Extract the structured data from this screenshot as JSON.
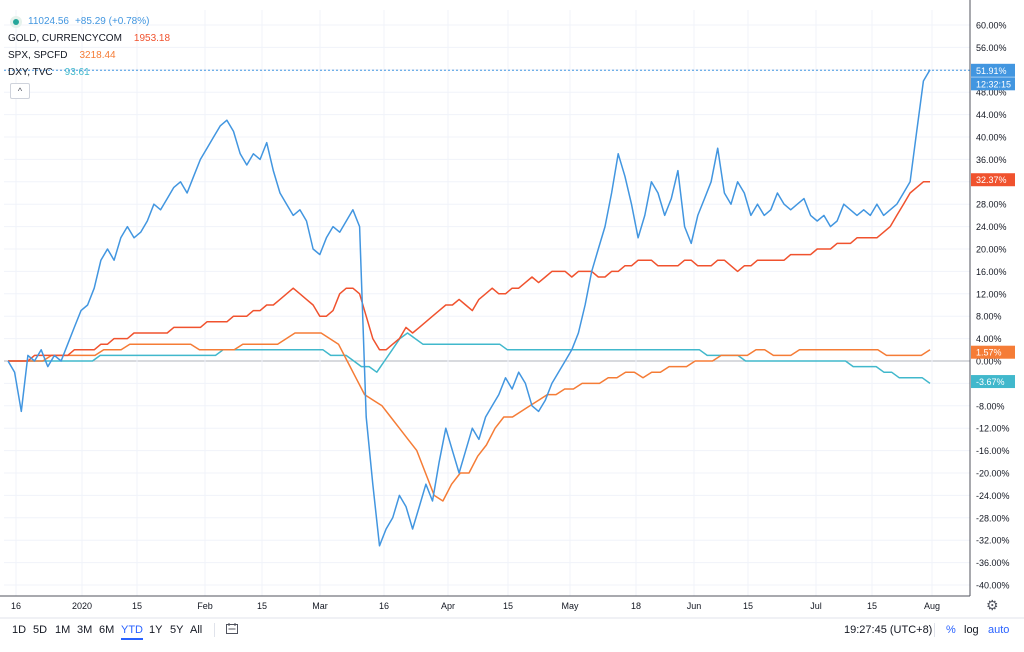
{
  "legend": {
    "main_value": "11024.56",
    "main_change": "+85.29 (+0.78%)",
    "series": [
      {
        "symbol": "GOLD, CURRENCYCOM",
        "value": "1953.18",
        "color": "#f0522e"
      },
      {
        "symbol": "SPX, SPCFD",
        "value": "3218.44",
        "color": "#f57c36"
      },
      {
        "symbol": "DXY, TVC",
        "value": "93.61",
        "color": "#41b8cc"
      }
    ],
    "collapse_glyph": "^"
  },
  "toolbar": {
    "ranges": [
      "1D",
      "5D",
      "1M",
      "3M",
      "6M",
      "YTD",
      "1Y",
      "5Y",
      "All"
    ],
    "active_range": "YTD",
    "time": "19:27:45 (UTC+8)",
    "percent": "%",
    "log": "log",
    "auto": "auto"
  },
  "chart_data": {
    "type": "line",
    "y_unit": "percent",
    "ylim": [
      -41,
      62
    ],
    "y_ticks": [
      60,
      56,
      52,
      48,
      44,
      40,
      36,
      32,
      28,
      24,
      20,
      16,
      12,
      8,
      4,
      0,
      -4,
      -8,
      -12,
      -16,
      -20,
      -24,
      -28,
      -32,
      -36,
      -40
    ],
    "x_ticks": [
      "16",
      "2020",
      "15",
      "Feb",
      "15",
      "Mar",
      "16",
      "Apr",
      "15",
      "May",
      "18",
      "Jun",
      "15",
      "Jul",
      "15",
      "Aug"
    ],
    "grid": true,
    "crosshair": {
      "value": 51.91,
      "time_label": "12:32:15"
    },
    "series": [
      {
        "name": "Main",
        "color": "#4296e0",
        "last_label": "51.91%",
        "values": [
          0,
          -2,
          -9,
          1,
          0,
          2,
          -1,
          1,
          0,
          3,
          6,
          9,
          10,
          13,
          18,
          20,
          18,
          22,
          24,
          22,
          23,
          25,
          28,
          27,
          29,
          31,
          32,
          30,
          33,
          36,
          38,
          40,
          42,
          43,
          41,
          37,
          35,
          37,
          36,
          39,
          34,
          30,
          28,
          26,
          27,
          25,
          20,
          19,
          22,
          24,
          23,
          25,
          27,
          24,
          -10,
          -22,
          -33,
          -30,
          -28,
          -24,
          -26,
          -30,
          -26,
          -22,
          -25,
          -18,
          -12,
          -16,
          -20,
          -16,
          -12,
          -14,
          -10,
          -8,
          -6,
          -3,
          -5,
          -2,
          -4,
          -8,
          -9,
          -7,
          -4,
          -2,
          0,
          2,
          5,
          10,
          16,
          20,
          24,
          30,
          37,
          33,
          28,
          22,
          26,
          32,
          30,
          26,
          29,
          34,
          24,
          21,
          26,
          29,
          32,
          38,
          30,
          28,
          32,
          30,
          26,
          28,
          26,
          27,
          30,
          28,
          27,
          28,
          29,
          26,
          25,
          26,
          24,
          25,
          28,
          27,
          26,
          27,
          26,
          28,
          26,
          27,
          28,
          30,
          32,
          41,
          50,
          52
        ]
      },
      {
        "name": "GOLD, CURRENCYCOM",
        "color": "#f0522e",
        "last_label": "32.37%",
        "values": [
          0,
          0,
          0,
          0,
          1,
          1,
          1,
          1,
          1,
          1,
          2,
          2,
          2,
          2,
          3,
          3,
          4,
          4,
          4,
          5,
          5,
          5,
          5,
          5,
          5,
          6,
          6,
          6,
          6,
          6,
          7,
          7,
          7,
          7,
          8,
          8,
          8,
          9,
          9,
          10,
          10,
          11,
          12,
          13,
          12,
          11,
          10,
          8,
          8,
          9,
          12,
          13,
          13,
          12,
          8,
          4,
          2,
          2,
          3,
          4,
          6,
          5,
          6,
          7,
          8,
          9,
          10,
          10,
          11,
          10,
          9,
          11,
          12,
          13,
          12,
          12,
          13,
          13,
          14,
          15,
          14,
          15,
          16,
          16,
          16,
          15,
          16,
          16,
          16,
          15,
          15,
          16,
          16,
          17,
          17,
          18,
          18,
          18,
          17,
          17,
          17,
          17,
          18,
          18,
          17,
          17,
          17,
          18,
          18,
          17,
          16,
          17,
          17,
          18,
          18,
          18,
          18,
          18,
          19,
          19,
          19,
          19,
          20,
          20,
          20,
          21,
          21,
          21,
          22,
          22,
          22,
          22,
          23,
          24,
          26,
          28,
          30,
          31,
          32,
          32
        ]
      },
      {
        "name": "SPX, SPCFD",
        "color": "#f57c36",
        "last_label": "1.57%",
        "values": [
          0,
          0,
          0,
          0,
          0,
          1,
          1,
          1,
          1,
          1,
          1,
          2,
          2,
          2,
          3,
          3,
          3,
          3,
          3,
          3,
          3,
          3,
          2,
          2,
          2,
          2,
          2,
          3,
          3,
          3,
          3,
          3,
          4,
          5,
          5,
          5,
          5,
          4,
          3,
          0,
          -3,
          -6,
          -7,
          -8,
          -10,
          -12,
          -14,
          -16,
          -20,
          -24,
          -25,
          -22,
          -20,
          -20,
          -17,
          -15,
          -12,
          -10,
          -10,
          -9,
          -8,
          -7,
          -6,
          -6,
          -5,
          -5,
          -4,
          -4,
          -4,
          -3,
          -3,
          -2,
          -2,
          -3,
          -2,
          -2,
          -1,
          -1,
          -1,
          0,
          0,
          0,
          1,
          1,
          1,
          1,
          2,
          2,
          1,
          1,
          1,
          2,
          2,
          2,
          2,
          2,
          2,
          2,
          2,
          2,
          2,
          1,
          1,
          1,
          1,
          1,
          2
        ]
      },
      {
        "name": "DXY, TVC",
        "color": "#41b8cc",
        "last_label": "-3.67%",
        "values": [
          0,
          0,
          0,
          0,
          0,
          0,
          0,
          0,
          0,
          0,
          0,
          0,
          1,
          1,
          1,
          1,
          1,
          1,
          1,
          1,
          1,
          1,
          1,
          1,
          1,
          1,
          1,
          1,
          2,
          2,
          2,
          2,
          2,
          2,
          2,
          2,
          2,
          2,
          2,
          2,
          2,
          2,
          1,
          1,
          1,
          0,
          -1,
          -1,
          -2,
          0,
          2,
          4,
          5,
          4,
          3,
          3,
          3,
          3,
          3,
          3,
          3,
          3,
          3,
          3,
          3,
          2,
          2,
          2,
          2,
          2,
          2,
          2,
          2,
          2,
          2,
          2,
          2,
          2,
          2,
          2,
          2,
          2,
          2,
          2,
          2,
          2,
          2,
          2,
          2,
          2,
          2,
          1,
          1,
          1,
          1,
          1,
          0,
          0,
          0,
          0,
          0,
          0,
          0,
          0,
          0,
          0,
          0,
          0,
          0,
          0,
          -1,
          -1,
          -1,
          -1,
          -2,
          -2,
          -3,
          -3,
          -3,
          -3,
          -4
        ]
      }
    ]
  }
}
